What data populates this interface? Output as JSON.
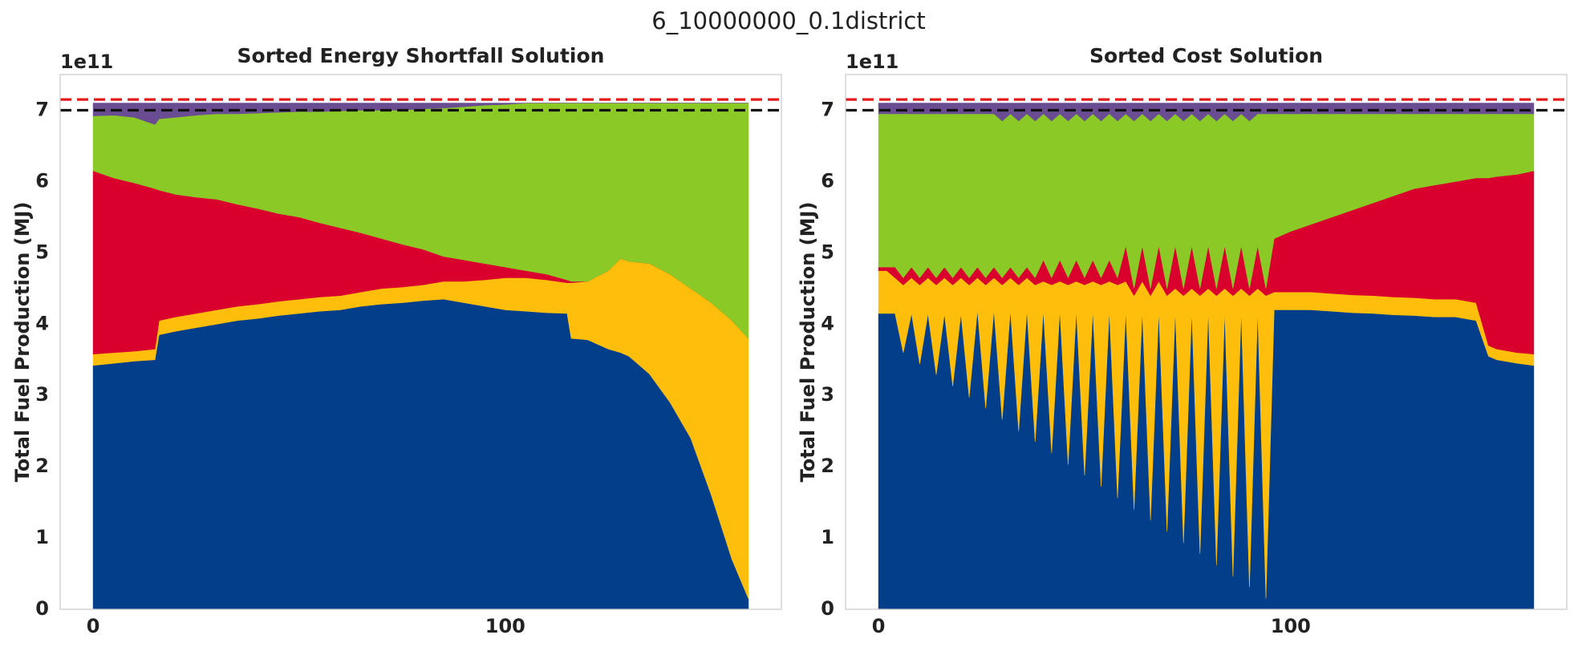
{
  "suptitle": "6_10000000_0.1district",
  "chart_data": [
    {
      "type": "stacked_area",
      "title": "Sorted Energy Shortfall Solution",
      "ylabel": "Total Fuel Production (MJ)",
      "offset_label": "1e11",
      "xlim": [
        -8,
        167
      ],
      "xticks": [
        0,
        100
      ],
      "ylim": [
        0,
        7.5
      ],
      "yticks": [
        0,
        1,
        2,
        3,
        4,
        5,
        6,
        7
      ],
      "grid": false,
      "hlines": [
        {
          "value": 7.15,
          "color": "#e41a1c"
        },
        {
          "value": 7.0,
          "color": "#111111"
        }
      ],
      "x": [
        0,
        5,
        10,
        15,
        16,
        20,
        25,
        30,
        35,
        40,
        45,
        50,
        55,
        60,
        65,
        70,
        75,
        80,
        85,
        90,
        95,
        100,
        105,
        110,
        115,
        116,
        120,
        125,
        128,
        130,
        135,
        140,
        145,
        150,
        155,
        159
      ],
      "series": [
        {
          "color": "#023e8a",
          "values": [
            3.42,
            3.45,
            3.48,
            3.5,
            3.85,
            3.9,
            3.95,
            4.0,
            4.05,
            4.08,
            4.12,
            4.15,
            4.18,
            4.2,
            4.25,
            4.28,
            4.3,
            4.33,
            4.35,
            4.3,
            4.25,
            4.2,
            4.18,
            4.16,
            4.15,
            3.8,
            3.78,
            3.65,
            3.6,
            3.55,
            3.3,
            2.9,
            2.4,
            1.6,
            0.7,
            0.15
          ]
        },
        {
          "color": "#ffbe0b",
          "values": [
            0.16,
            0.15,
            0.14,
            0.15,
            0.2,
            0.2,
            0.2,
            0.2,
            0.2,
            0.2,
            0.2,
            0.2,
            0.2,
            0.2,
            0.2,
            0.22,
            0.22,
            0.22,
            0.25,
            0.3,
            0.37,
            0.45,
            0.47,
            0.46,
            0.43,
            0.78,
            0.82,
            1.1,
            1.32,
            1.33,
            1.55,
            1.8,
            2.1,
            2.7,
            3.35,
            3.65
          ]
        },
        {
          "color": "#d9002e",
          "values": [
            2.57,
            2.45,
            2.36,
            2.25,
            1.83,
            1.72,
            1.63,
            1.55,
            1.43,
            1.34,
            1.23,
            1.15,
            1.04,
            0.95,
            0.83,
            0.7,
            0.6,
            0.5,
            0.35,
            0.3,
            0.23,
            0.15,
            0.1,
            0.08,
            0.04,
            0.02,
            0,
            0,
            0,
            0,
            0,
            0,
            0,
            0,
            0,
            0
          ]
        },
        {
          "color": "#8ac926",
          "values": [
            0.77,
            0.88,
            0.92,
            0.9,
            1.0,
            1.08,
            1.15,
            1.2,
            1.27,
            1.34,
            1.42,
            1.48,
            1.56,
            1.64,
            1.72,
            1.8,
            1.88,
            1.97,
            2.08,
            2.15,
            2.22,
            2.28,
            2.35,
            2.4,
            2.48,
            2.5,
            2.5,
            2.35,
            2.18,
            2.22,
            2.25,
            2.4,
            2.6,
            2.8,
            3.05,
            3.3
          ]
        },
        {
          "color": "#6a4c93",
          "values": [
            0.18,
            0.17,
            0.2,
            0.3,
            0.22,
            0.2,
            0.17,
            0.15,
            0.15,
            0.14,
            0.13,
            0.12,
            0.12,
            0.11,
            0.1,
            0.1,
            0.1,
            0.08,
            0.07,
            0.05,
            0.03,
            0.02,
            0,
            0,
            0,
            0,
            0,
            0,
            0,
            0,
            0,
            0,
            0,
            0,
            0,
            0
          ]
        }
      ]
    },
    {
      "type": "stacked_area",
      "title": "Sorted Cost Solution",
      "ylabel": "Total Fuel Production (MJ)",
      "offset_label": "1e11",
      "xlim": [
        -8,
        167
      ],
      "xticks": [
        0,
        100
      ],
      "ylim": [
        0,
        7.5
      ],
      "yticks": [
        0,
        1,
        2,
        3,
        4,
        5,
        6,
        7
      ],
      "grid": false,
      "hlines": [
        {
          "value": 7.15,
          "color": "#e41a1c"
        },
        {
          "value": 7.0,
          "color": "#111111"
        }
      ],
      "x": [
        0,
        2,
        4,
        6,
        8,
        10,
        12,
        14,
        16,
        18,
        20,
        22,
        24,
        26,
        28,
        30,
        32,
        34,
        36,
        38,
        40,
        42,
        44,
        46,
        48,
        50,
        52,
        54,
        56,
        58,
        60,
        62,
        64,
        66,
        68,
        70,
        72,
        74,
        76,
        78,
        80,
        82,
        84,
        86,
        88,
        90,
        92,
        94,
        96,
        100,
        105,
        110,
        115,
        120,
        125,
        130,
        135,
        140,
        145,
        148,
        150,
        155,
        159
      ],
      "series": [
        {
          "color": "#023e8a",
          "values": [
            4.15,
            4.15,
            4.15,
            3.6,
            4.15,
            3.44,
            4.15,
            3.29,
            4.15,
            3.13,
            4.15,
            2.97,
            4.2,
            2.82,
            4.2,
            2.66,
            4.2,
            2.5,
            4.2,
            2.35,
            4.2,
            2.19,
            4.2,
            2.03,
            4.2,
            1.88,
            4.2,
            1.72,
            4.2,
            1.56,
            4.2,
            1.4,
            4.2,
            1.25,
            4.2,
            1.09,
            4.2,
            0.93,
            4.2,
            0.78,
            4.2,
            0.62,
            4.2,
            0.46,
            4.2,
            0.31,
            4.2,
            0.15,
            4.2,
            4.2,
            4.2,
            4.18,
            4.16,
            4.15,
            4.13,
            4.12,
            4.1,
            4.1,
            4.05,
            3.55,
            3.5,
            3.45,
            3.42
          ]
        },
        {
          "color": "#ffbe0b",
          "values": [
            0.6,
            0.6,
            0.5,
            0.95,
            0.5,
            1.11,
            0.5,
            1.26,
            0.5,
            1.42,
            0.5,
            1.58,
            0.45,
            1.73,
            0.45,
            1.89,
            0.45,
            2.05,
            0.45,
            2.2,
            0.4,
            2.36,
            0.4,
            2.52,
            0.4,
            2.67,
            0.4,
            2.83,
            0.4,
            2.99,
            0.4,
            3.0,
            0.4,
            3.15,
            0.4,
            3.31,
            0.3,
            3.47,
            0.3,
            3.62,
            0.3,
            3.78,
            0.3,
            3.94,
            0.3,
            4.09,
            0.3,
            4.25,
            0.25,
            0.25,
            0.25,
            0.25,
            0.25,
            0.25,
            0.25,
            0.25,
            0.25,
            0.25,
            0.25,
            0.15,
            0.15,
            0.15,
            0.16
          ]
        },
        {
          "color": "#d9002e",
          "values": [
            0.05,
            0.05,
            0.15,
            0.1,
            0.15,
            0.1,
            0.15,
            0.1,
            0.15,
            0.1,
            0.15,
            0.1,
            0.15,
            0.1,
            0.15,
            0.1,
            0.15,
            0.1,
            0.15,
            0.1,
            0.3,
            0.1,
            0.3,
            0.1,
            0.3,
            0.1,
            0.3,
            0.1,
            0.3,
            0.1,
            0.5,
            0.1,
            0.5,
            0.1,
            0.5,
            0.1,
            0.6,
            0.1,
            0.6,
            0.1,
            0.6,
            0.1,
            0.6,
            0.1,
            0.6,
            0.1,
            0.6,
            0.1,
            0.75,
            0.85,
            0.95,
            1.07,
            1.19,
            1.3,
            1.42,
            1.53,
            1.6,
            1.65,
            1.75,
            2.35,
            2.42,
            2.5,
            2.57
          ]
        },
        {
          "color": "#8ac926",
          "values": [
            2.15,
            2.15,
            2.15,
            2.3,
            2.15,
            2.3,
            2.15,
            2.3,
            2.15,
            2.3,
            2.15,
            2.3,
            2.15,
            2.3,
            2.15,
            2.2,
            2.15,
            2.2,
            2.15,
            2.2,
            2.05,
            2.2,
            2.05,
            2.2,
            2.05,
            2.2,
            2.05,
            2.2,
            2.05,
            2.2,
            1.85,
            2.35,
            1.85,
            2.35,
            1.85,
            2.35,
            1.85,
            2.35,
            1.85,
            2.35,
            1.85,
            2.35,
            1.85,
            2.35,
            1.85,
            2.35,
            1.85,
            2.45,
            1.75,
            1.65,
            1.55,
            1.45,
            1.35,
            1.25,
            1.15,
            1.05,
            1.0,
            0.95,
            0.9,
            0.9,
            0.88,
            0.85,
            0.8
          ]
        },
        {
          "color": "#6a4c93",
          "values": [
            0.15,
            0.15,
            0.15,
            0.15,
            0.15,
            0.15,
            0.15,
            0.15,
            0.15,
            0.15,
            0.15,
            0.15,
            0.15,
            0.15,
            0.15,
            0.25,
            0.15,
            0.25,
            0.15,
            0.25,
            0.15,
            0.25,
            0.15,
            0.25,
            0.15,
            0.25,
            0.15,
            0.25,
            0.15,
            0.25,
            0.15,
            0.25,
            0.15,
            0.25,
            0.15,
            0.25,
            0.15,
            0.25,
            0.15,
            0.25,
            0.15,
            0.25,
            0.15,
            0.25,
            0.15,
            0.25,
            0.15,
            0.15,
            0.15,
            0.15,
            0.15,
            0.15,
            0.15,
            0.15,
            0.15,
            0.15,
            0.15,
            0.15,
            0.15,
            0.15,
            0.15,
            0.15,
            0.15
          ]
        }
      ]
    }
  ]
}
